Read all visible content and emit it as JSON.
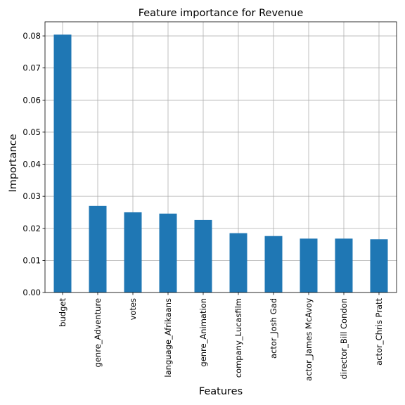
{
  "chart_data": {
    "type": "bar",
    "title": "Feature importance for Revenue",
    "xlabel": "Features",
    "ylabel": "Importance",
    "categories": [
      "budget",
      "genre_Adventure",
      "votes",
      "language_Afrikaans",
      "genre_Animation",
      "company_Lucasfilm",
      "actor_Josh Gad",
      "actor_James McAvoy",
      "director_Bill Condon",
      "actor_Chris Pratt"
    ],
    "values": [
      0.0804,
      0.027,
      0.025,
      0.0246,
      0.0226,
      0.0185,
      0.0176,
      0.0168,
      0.0168,
      0.0166
    ],
    "yticks": [
      "0.00",
      "0.01",
      "0.02",
      "0.03",
      "0.04",
      "0.05",
      "0.06",
      "0.07",
      "0.08"
    ],
    "ylim": [
      0,
      0.0844
    ],
    "grid": true,
    "bar_color": "#1f77b4"
  }
}
